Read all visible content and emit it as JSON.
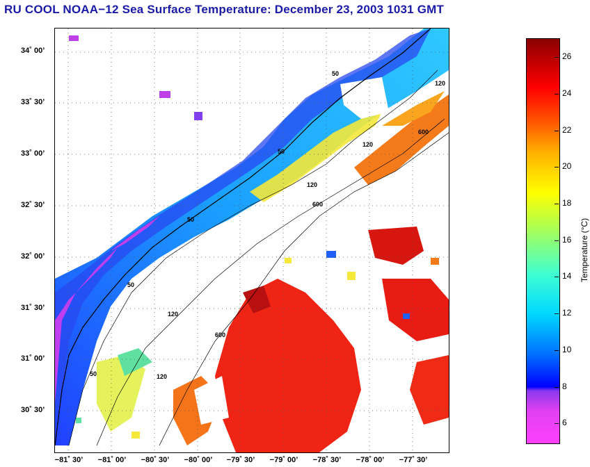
{
  "title": "RU COOL  NOAA−12  Sea Surface Temperature:  December 23, 2003 1031 GMT",
  "map": {
    "lat_labels": [
      "34˚ 00’",
      "33˚ 30’",
      "33˚ 00’",
      "32˚ 30’",
      "32˚ 00’",
      "31˚ 30’",
      "31˚ 00’",
      "30˚ 30’"
    ],
    "lon_labels": [
      "−81˚ 30’",
      "−81˚ 00’",
      "−80˚ 30’",
      "−80˚ 00’",
      "−79˚ 30’",
      "−79˚ 00’",
      "−78˚ 30’",
      "−78˚ 00’",
      "−77˚ 30’"
    ],
    "contour_labels": [
      "50",
      "50",
      "50",
      "50",
      "50",
      "120",
      "120",
      "120",
      "120",
      "120",
      "600",
      "600",
      "600"
    ]
  },
  "colorbar": {
    "label": "Temperature (°C)",
    "ticks": [
      "26",
      "24",
      "22",
      "20",
      "18",
      "16",
      "14",
      "12",
      "10",
      "8",
      "6"
    ],
    "min": 5,
    "max": 27,
    "tick_values": [
      26,
      24,
      22,
      20,
      18,
      16,
      14,
      12,
      10,
      8,
      6
    ]
  }
}
